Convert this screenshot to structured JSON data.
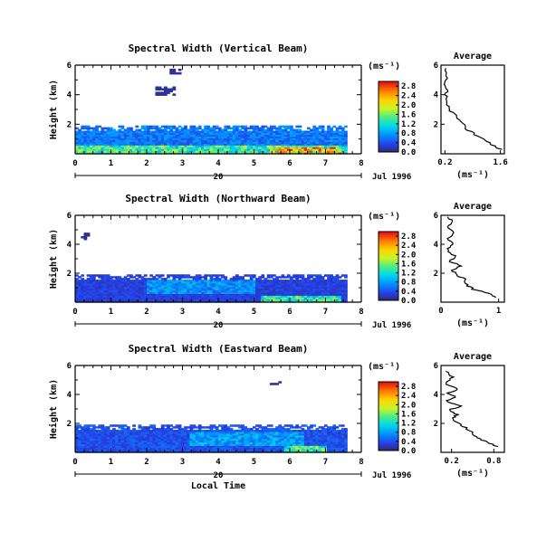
{
  "chart_data": [
    {
      "type": "heatmap",
      "title": "Spectral Width (Vertical Beam)",
      "ylabel": "Height (km)",
      "x_ticks": [
        "0",
        "1",
        "2",
        "3",
        "4",
        "5",
        "6",
        "7",
        "8"
      ],
      "y_ticks": [
        "2",
        "4",
        "6"
      ],
      "xlim": [
        0,
        8
      ],
      "ylim": [
        0,
        6
      ],
      "date_day": "20",
      "date_label": "Jul 1996",
      "colorbar": {
        "unit": "(ms⁻¹)",
        "ticks": [
          "0.0",
          "0.4",
          "0.8",
          "1.2",
          "1.6",
          "2.0",
          "2.4",
          "2.8"
        ],
        "range": [
          0.0,
          3.0
        ]
      },
      "average_panel": {
        "title": "Average",
        "xlabel": "(ms⁻¹)",
        "x_ticks": [
          "0.2",
          "1.6"
        ],
        "y_ticks": [
          "2",
          "4",
          "6"
        ],
        "xlim": [
          0.1,
          1.7
        ],
        "profile": [
          [
            1.6,
            0.3
          ],
          [
            1.4,
            0.6
          ],
          [
            1.2,
            0.9
          ],
          [
            0.95,
            1.3
          ],
          [
            0.75,
            1.7
          ],
          [
            0.6,
            2.2
          ],
          [
            0.45,
            2.6
          ],
          [
            0.3,
            3.0
          ],
          [
            0.25,
            3.4
          ],
          [
            0.22,
            3.8
          ],
          [
            0.25,
            4.2
          ],
          [
            0.2,
            4.6
          ],
          [
            0.24,
            5.0
          ],
          [
            0.2,
            5.4
          ],
          [
            0.22,
            5.8
          ]
        ]
      },
      "regions": [
        {
          "x0": 0.0,
          "x1": 7.6,
          "y0": 0.0,
          "y1": 1.9,
          "level": 0.6
        },
        {
          "x0": 0.0,
          "x1": 7.6,
          "y0": 0.0,
          "y1": 0.5,
          "level": 1.4
        },
        {
          "x0": 5.5,
          "x1": 7.4,
          "y0": 0.0,
          "y1": 0.4,
          "level": 2.2
        },
        {
          "x0": 2.2,
          "x1": 2.8,
          "y0": 3.9,
          "y1": 4.5,
          "level": 0.1
        },
        {
          "x0": 2.6,
          "x1": 2.9,
          "y0": 5.4,
          "y1": 5.7,
          "level": 0.1
        }
      ]
    },
    {
      "type": "heatmap",
      "title": "Spectral Width (Northward Beam)",
      "ylabel": "Height (km)",
      "x_ticks": [
        "0",
        "1",
        "2",
        "3",
        "4",
        "5",
        "6",
        "7",
        "8"
      ],
      "y_ticks": [
        "2",
        "4",
        "6"
      ],
      "xlim": [
        0,
        8
      ],
      "ylim": [
        0,
        6
      ],
      "date_day": "20",
      "date_label": "Jul 1996",
      "colorbar": {
        "unit": "(ms⁻¹)",
        "ticks": [
          "0.0",
          "0.4",
          "0.8",
          "1.2",
          "1.6",
          "2.0",
          "2.4",
          "2.8"
        ],
        "range": [
          0.0,
          3.0
        ]
      },
      "average_panel": {
        "title": "Average",
        "xlabel": "(ms⁻¹)",
        "x_ticks": [
          "0",
          "1"
        ],
        "y_ticks": [
          "2",
          "4",
          "6"
        ],
        "xlim": [
          0,
          1.1
        ],
        "profile": [
          [
            0.95,
            0.3
          ],
          [
            0.85,
            0.6
          ],
          [
            0.55,
            0.9
          ],
          [
            0.45,
            1.2
          ],
          [
            0.42,
            1.6
          ],
          [
            0.25,
            1.9
          ],
          [
            0.2,
            2.2
          ],
          [
            0.35,
            2.5
          ],
          [
            0.15,
            2.8
          ],
          [
            0.25,
            3.2
          ],
          [
            0.1,
            3.6
          ],
          [
            0.2,
            4.0
          ],
          [
            0.12,
            4.4
          ],
          [
            0.22,
            4.8
          ],
          [
            0.1,
            5.2
          ],
          [
            0.2,
            5.6
          ],
          [
            0.12,
            5.9
          ]
        ]
      },
      "regions": [
        {
          "x0": 0.0,
          "x1": 7.6,
          "y0": 0.0,
          "y1": 1.9,
          "level": 0.3
        },
        {
          "x0": 2.0,
          "x1": 5.0,
          "y0": 0.6,
          "y1": 1.5,
          "level": 0.7
        },
        {
          "x0": 5.2,
          "x1": 7.4,
          "y0": 0.0,
          "y1": 0.4,
          "level": 1.3
        },
        {
          "x0": 0.15,
          "x1": 0.35,
          "y0": 4.3,
          "y1": 4.7,
          "level": 0.1
        }
      ]
    },
    {
      "type": "heatmap",
      "title": "Spectral Width (Eastward Beam)",
      "ylabel": "Height (km)",
      "xlabel": "Local Time",
      "x_ticks": [
        "0",
        "1",
        "2",
        "3",
        "4",
        "5",
        "6",
        "7",
        "8"
      ],
      "y_ticks": [
        "2",
        "4",
        "6"
      ],
      "xlim": [
        0,
        8
      ],
      "ylim": [
        0,
        6
      ],
      "date_day": "20",
      "date_label": "Jul 1996",
      "colorbar": {
        "unit": "(ms⁻¹)",
        "ticks": [
          "0.0",
          "0.4",
          "0.8",
          "1.2",
          "1.6",
          "2.0",
          "2.4",
          "2.8"
        ],
        "range": [
          0.0,
          3.0
        ]
      },
      "average_panel": {
        "title": "Average",
        "xlabel": "(ms⁻¹)",
        "x_ticks": [
          "0.2",
          "0.8"
        ],
        "y_ticks": [
          "2",
          "4",
          "6"
        ],
        "xlim": [
          0.05,
          0.95
        ],
        "profile": [
          [
            0.85,
            0.4
          ],
          [
            0.7,
            0.7
          ],
          [
            0.55,
            1.0
          ],
          [
            0.5,
            1.3
          ],
          [
            0.4,
            1.7
          ],
          [
            0.3,
            2.0
          ],
          [
            0.2,
            2.3
          ],
          [
            0.28,
            2.6
          ],
          [
            0.15,
            2.9
          ],
          [
            0.35,
            3.2
          ],
          [
            0.12,
            3.5
          ],
          [
            0.25,
            3.8
          ],
          [
            0.15,
            4.1
          ],
          [
            0.3,
            4.4
          ],
          [
            0.1,
            4.8
          ],
          [
            0.22,
            5.2
          ],
          [
            0.12,
            5.6
          ]
        ]
      },
      "regions": [
        {
          "x0": 0.0,
          "x1": 7.6,
          "y0": 0.0,
          "y1": 1.9,
          "level": 0.4
        },
        {
          "x0": 3.2,
          "x1": 6.4,
          "y0": 0.4,
          "y1": 1.4,
          "level": 0.8
        },
        {
          "x0": 5.8,
          "x1": 7.0,
          "y0": 0.0,
          "y1": 0.4,
          "level": 1.4
        },
        {
          "x0": 5.4,
          "x1": 5.7,
          "y0": 4.6,
          "y1": 4.9,
          "level": 0.1
        }
      ]
    }
  ]
}
